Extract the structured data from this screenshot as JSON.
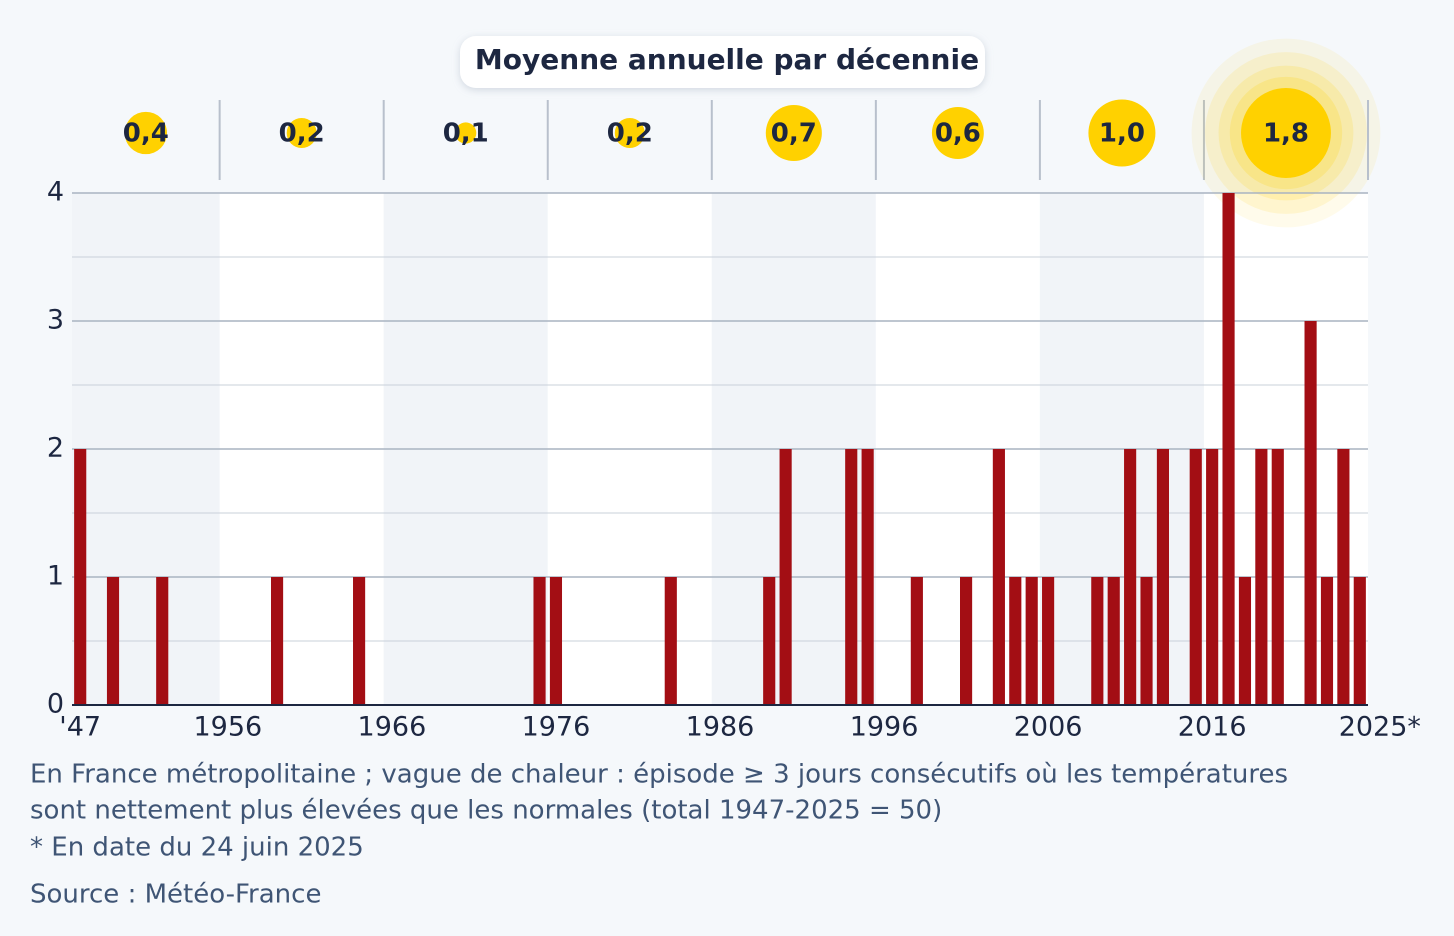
{
  "chart_data": {
    "type": "bar",
    "x": [
      1947,
      1948,
      1949,
      1950,
      1951,
      1952,
      1953,
      1954,
      1955,
      1956,
      1957,
      1958,
      1959,
      1960,
      1961,
      1962,
      1963,
      1964,
      1965,
      1966,
      1967,
      1968,
      1969,
      1970,
      1971,
      1972,
      1973,
      1974,
      1975,
      1976,
      1977,
      1978,
      1979,
      1980,
      1981,
      1982,
      1983,
      1984,
      1985,
      1986,
      1987,
      1988,
      1989,
      1990,
      1991,
      1992,
      1993,
      1994,
      1995,
      1996,
      1997,
      1998,
      1999,
      2000,
      2001,
      2002,
      2003,
      2004,
      2005,
      2006,
      2007,
      2008,
      2009,
      2010,
      2011,
      2012,
      2013,
      2014,
      2015,
      2016,
      2017,
      2018,
      2019,
      2020,
      2021,
      2022,
      2023,
      2024,
      2025
    ],
    "values": [
      2,
      0,
      1,
      0,
      0,
      1,
      0,
      0,
      0,
      0,
      0,
      0,
      1,
      0,
      0,
      0,
      0,
      1,
      0,
      0,
      0,
      0,
      0,
      0,
      0,
      0,
      0,
      0,
      1,
      1,
      0,
      0,
      0,
      0,
      0,
      0,
      1,
      0,
      0,
      0,
      0,
      0,
      1,
      2,
      0,
      0,
      0,
      2,
      2,
      0,
      0,
      1,
      0,
      0,
      1,
      0,
      2,
      1,
      1,
      1,
      0,
      0,
      1,
      1,
      2,
      1,
      2,
      0,
      2,
      2,
      4,
      1,
      2,
      2,
      0,
      3,
      1,
      2,
      1
    ],
    "color": "#a30e14",
    "xlim": [
      1946.5,
      2025.5
    ],
    "xticks": [
      {
        "value": 1947,
        "label": "'47"
      },
      1956,
      1966,
      1976,
      1986,
      1996,
      2006,
      2016,
      {
        "value": 2025,
        "label": "2025*"
      }
    ],
    "ylim": [
      0,
      4
    ],
    "yticks": [
      0,
      1,
      2,
      3,
      4
    ],
    "minor_yticks": [
      0.5,
      1.5,
      2.5,
      3.5
    ],
    "grid": true,
    "decade_averages": {
      "title": "Moyenne annuelle par décennie",
      "values": [
        0.4,
        0.2,
        0.1,
        0.2,
        0.7,
        0.6,
        1.0,
        1.8
      ],
      "value_labels": [
        "0,4",
        "0,2",
        "0,1",
        "0,2",
        "0,7",
        "0,6",
        "1,0",
        "1,8"
      ],
      "color": "#ffd100"
    },
    "notes": [
      "En France métropolitaine ; vague de chaleur : épisode ≥ 3 jours consécutifs où les températures",
      "sont nettement plus élevées que les normales (total 1947-2025 = 50)",
      "* En date du 24 juin 2025"
    ],
    "source": "Source : Météo-France"
  }
}
